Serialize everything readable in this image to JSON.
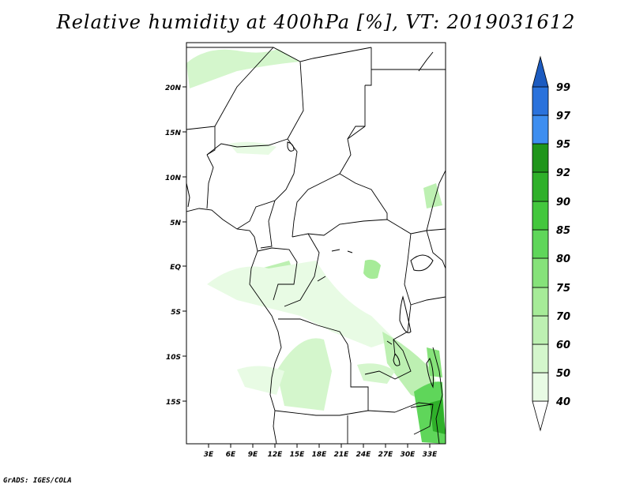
{
  "title": "Relative humidity at 400hPa [%], VT: 2019031612",
  "credit": "GrADS: IGES/COLA",
  "map": {
    "lat_labels": [
      "20N",
      "15N",
      "10N",
      "5N",
      "EQ",
      "5S",
      "10S",
      "15S"
    ],
    "lon_labels": [
      "3E",
      "6E",
      "9E",
      "12E",
      "15E",
      "18E",
      "21E",
      "24E",
      "27E",
      "30E",
      "33E"
    ]
  },
  "colorbar": {
    "levels": [
      "40",
      "50",
      "60",
      "70",
      "75",
      "80",
      "85",
      "90",
      "92",
      "95",
      "97",
      "99"
    ],
    "colors": {
      "c40_50": "#e8fbe4",
      "c50_60": "#d4f6cc",
      "c60_70": "#bdf0b2",
      "c70_75": "#a6eb98",
      "c75_80": "#86e27a",
      "c80_85": "#5fd65a",
      "c85_90": "#43c73d",
      "c90_92": "#2fb02a",
      "c92_95": "#1f951b",
      "c95_97": "#3e8ef0",
      "c97_99": "#2a72dc",
      "c99_up": "#1c5bc0"
    }
  }
}
